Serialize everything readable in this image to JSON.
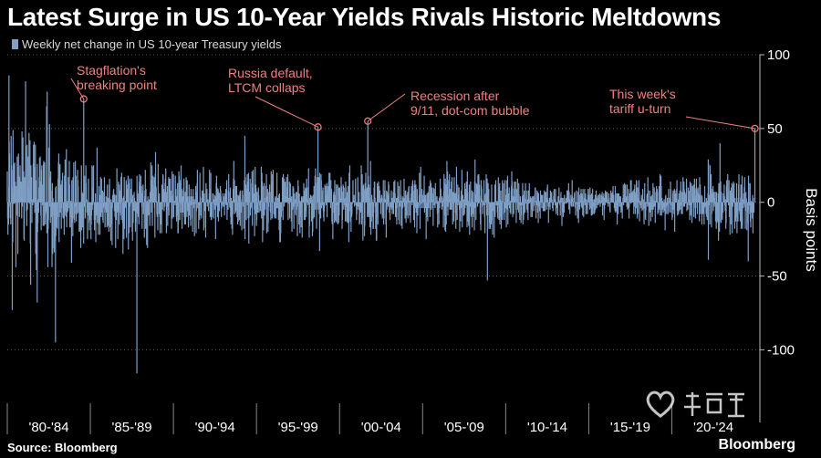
{
  "title": "Latest Surge in US 10-Year Yields Rivals Historic Meltdowns",
  "footer": {
    "source": "Source: Bloomberg",
    "brand": "Bloomberg"
  },
  "colors": {
    "background": "#000000",
    "bars": "#7f9fc5",
    "annotation": "#f08080",
    "text": "#ffffff",
    "grid": "#555555"
  },
  "watermark_icon": "heart-logo-watermark",
  "chart_data": {
    "type": "bar",
    "series": [
      {
        "name": "Weekly net change in US 10-year Treasury yields"
      }
    ],
    "ylabel": "Basis points",
    "ylim": [
      -135,
      100
    ],
    "yticks": [
      100,
      50,
      0,
      -50,
      -100
    ],
    "x_range": [
      1980.0,
      2025.3
    ],
    "categories": [
      "'80-'84",
      "'85-'89",
      "'90-'94",
      "'95-'99",
      "'00-'04",
      "'05-'09",
      "'10-'14",
      "'15-'19",
      "'20-'24"
    ],
    "category_bounds": [
      1980,
      1985,
      1990,
      1995,
      2000,
      2005,
      2010,
      2015,
      2020,
      2025
    ],
    "y_axis_position": "right",
    "grid": "horizontal-dotted",
    "annotations": [
      {
        "label": "Stagflation's\nbreaking point",
        "x": 1984.6,
        "y": 70
      },
      {
        "label": "Russia default,\nLTCM collaps",
        "x": 1998.7,
        "y": 51
      },
      {
        "label": "Recession after\n9/11, dot-com bubble",
        "x": 2001.7,
        "y": 55
      },
      {
        "label": "This week's\ntariff u-turn",
        "x": 2025.0,
        "y": 50
      }
    ],
    "highlighted_values": [
      {
        "x": 1980.1,
        "y": 86
      },
      {
        "x": 1980.3,
        "y": -73
      },
      {
        "x": 1981.1,
        "y": 82
      },
      {
        "x": 1981.8,
        "y": -68
      },
      {
        "x": 1982.4,
        "y": 75
      },
      {
        "x": 1982.9,
        "y": -95
      },
      {
        "x": 1984.6,
        "y": 70
      },
      {
        "x": 1987.8,
        "y": -116
      },
      {
        "x": 1994.3,
        "y": 45
      },
      {
        "x": 1998.7,
        "y": 51
      },
      {
        "x": 1998.8,
        "y": -33
      },
      {
        "x": 2001.7,
        "y": 55
      },
      {
        "x": 2008.9,
        "y": -53
      },
      {
        "x": 2022.9,
        "y": 40
      },
      {
        "x": 2022.2,
        "y": -39
      },
      {
        "x": 2024.6,
        "y": -40
      },
      {
        "x": 2025.0,
        "y": 50
      }
    ],
    "amplitude_profile": [
      {
        "x": 1980.0,
        "max_abs": 75
      },
      {
        "x": 1982.5,
        "max_abs": 62
      },
      {
        "x": 1985.0,
        "max_abs": 40
      },
      {
        "x": 1990.0,
        "max_abs": 30
      },
      {
        "x": 1995.0,
        "max_abs": 30
      },
      {
        "x": 2000.0,
        "max_abs": 30
      },
      {
        "x": 2005.0,
        "max_abs": 26
      },
      {
        "x": 2008.5,
        "max_abs": 32
      },
      {
        "x": 2010.0,
        "max_abs": 24
      },
      {
        "x": 2012.0,
        "max_abs": 15
      },
      {
        "x": 2015.0,
        "max_abs": 18
      },
      {
        "x": 2020.0,
        "max_abs": 20
      },
      {
        "x": 2022.5,
        "max_abs": 30
      },
      {
        "x": 2025.3,
        "max_abs": 28
      }
    ]
  }
}
